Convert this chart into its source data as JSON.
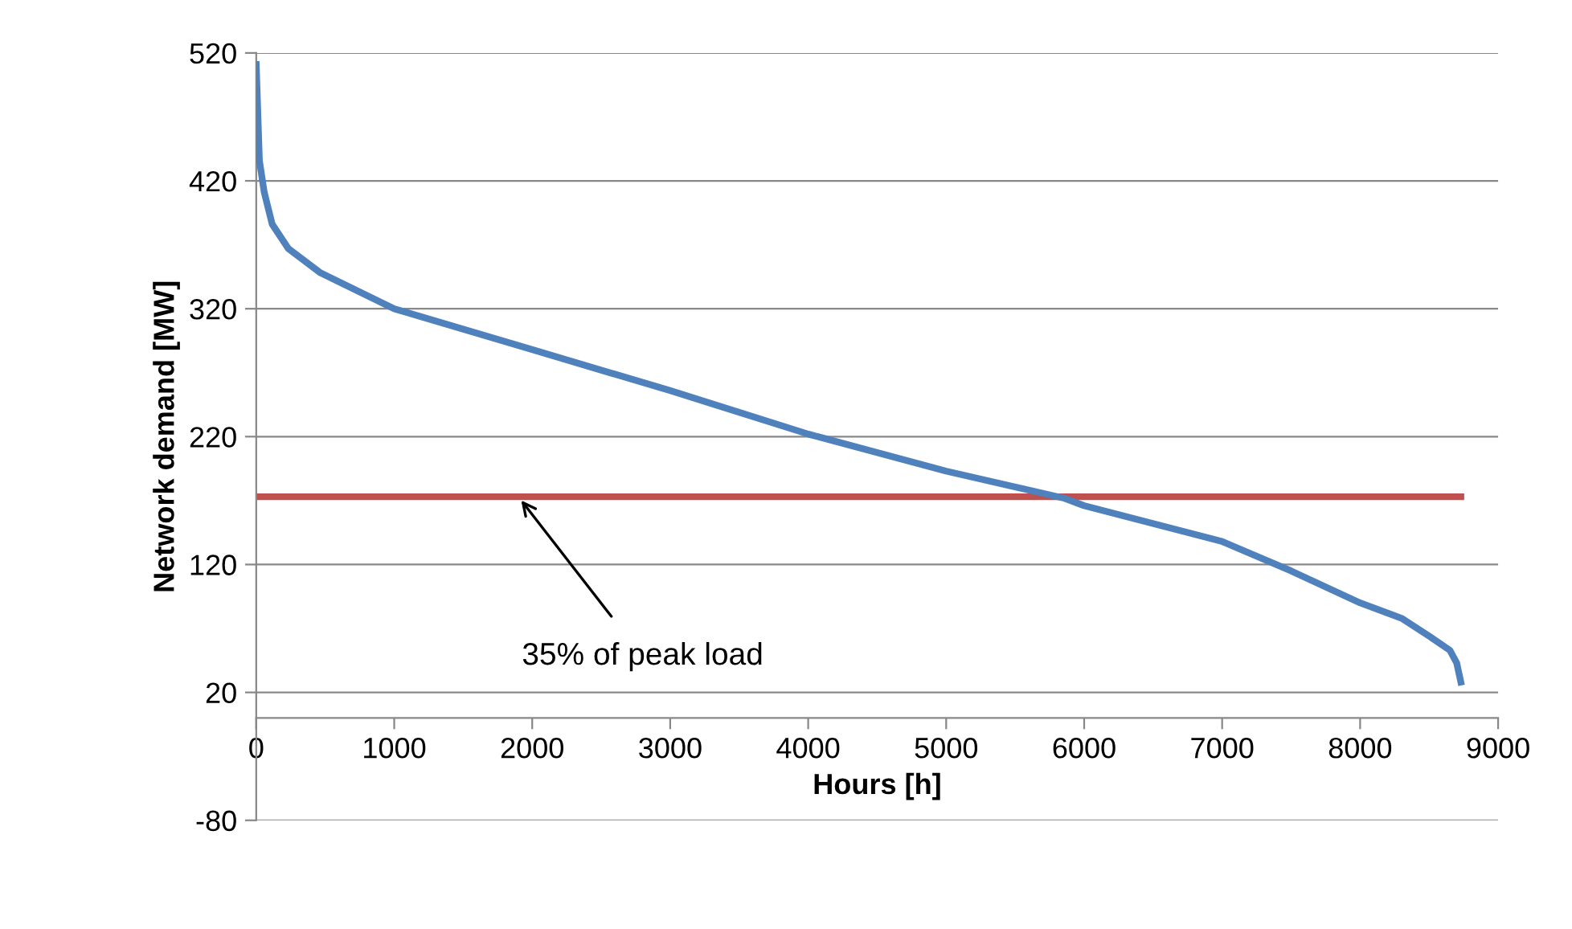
{
  "chart_data": {
    "type": "line",
    "xlabel": "Hours [h]",
    "ylabel": "Network demand [MW]",
    "xlim": [
      0,
      9000
    ],
    "xticks": [
      0,
      1000,
      2000,
      3000,
      4000,
      5000,
      6000,
      7000,
      8000,
      9000
    ],
    "ylim": [
      -80,
      520
    ],
    "yticks": [
      -80,
      20,
      120,
      220,
      320,
      420,
      520
    ],
    "grid": "y",
    "legend": false,
    "marker": "none",
    "line_style": "solid",
    "series": [
      {
        "color": "#4f81bd",
        "x": [
          0,
          23,
          58,
          116,
          233,
          466,
          1000,
          2000,
          3000,
          4000,
          5000,
          5850,
          6000,
          7000,
          7500,
          8000,
          8300,
          8500,
          8650,
          8700,
          8730
        ],
        "values": [
          511,
          436,
          411,
          386,
          367,
          348,
          320,
          288,
          256,
          222,
          193,
          172,
          166,
          138,
          115,
          90,
          78,
          64,
          53,
          43,
          28
        ]
      }
    ],
    "ref_lines": [
      {
        "axis": "y",
        "value": 173,
        "color": "#c0504d",
        "line_style": "solid"
      }
    ],
    "annotations": [
      {
        "text": "35% of peak load",
        "x": 1900,
        "y": 173
      }
    ]
  }
}
